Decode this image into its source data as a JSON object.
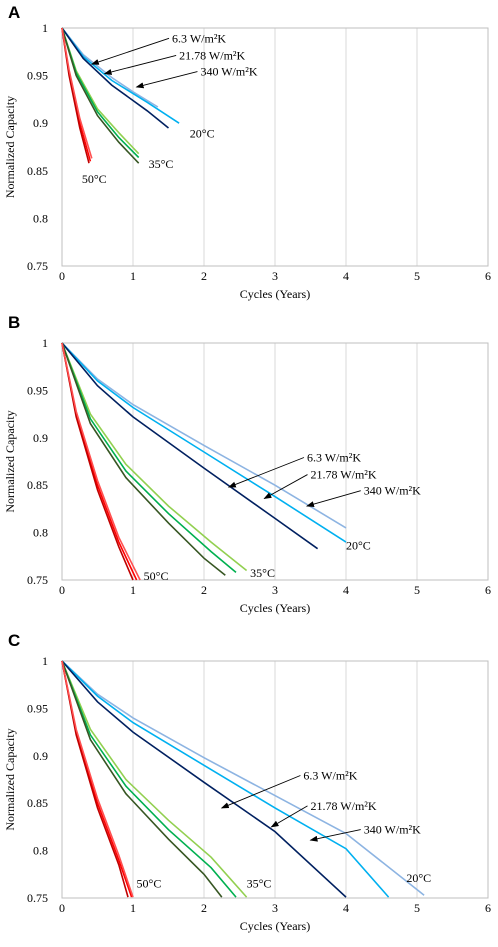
{
  "chart_data": [
    {
      "panel": "A",
      "type": "line",
      "xlabel": "Cycles (Years)",
      "ylabel": "Normalized Capacity",
      "xlim": [
        0,
        6
      ],
      "ylim": [
        0.75,
        1
      ],
      "xticks": [
        "0",
        "1",
        "2",
        "3",
        "4",
        "5",
        "6"
      ],
      "yticks": [
        "0.75",
        "0.8",
        "0.85",
        "0.9",
        "0.95",
        "1"
      ],
      "grid": "vertical",
      "series": [
        {
          "color": "#8db4e2",
          "x": [
            0,
            0.3,
            0.7,
            1.0,
            1.35
          ],
          "y": [
            1,
            0.972,
            0.948,
            0.933,
            0.917
          ]
        },
        {
          "color": "#00b0f0",
          "x": [
            0,
            0.3,
            0.7,
            1.2,
            1.65
          ],
          "y": [
            1,
            0.97,
            0.945,
            0.922,
            0.9
          ]
        },
        {
          "color": "#002060",
          "x": [
            0,
            0.3,
            0.7,
            1.2,
            1.5
          ],
          "y": [
            1,
            0.968,
            0.94,
            0.913,
            0.895
          ]
        },
        {
          "color": "#92d050",
          "x": [
            0,
            0.2,
            0.5,
            0.8,
            1.08
          ],
          "y": [
            1,
            0.955,
            0.915,
            0.89,
            0.868
          ]
        },
        {
          "color": "#00b050",
          "x": [
            0,
            0.2,
            0.5,
            0.8,
            1.08
          ],
          "y": [
            1,
            0.953,
            0.912,
            0.885,
            0.864
          ]
        },
        {
          "color": "#375623",
          "x": [
            0,
            0.2,
            0.5,
            0.8,
            1.08
          ],
          "y": [
            1,
            0.95,
            0.908,
            0.88,
            0.858
          ]
        },
        {
          "color": "#ff0000",
          "x": [
            0,
            0.1,
            0.25,
            0.4
          ],
          "y": [
            1,
            0.953,
            0.9,
            0.86
          ]
        },
        {
          "color": "#c00000",
          "x": [
            0,
            0.1,
            0.25,
            0.38
          ],
          "y": [
            1,
            0.95,
            0.895,
            0.858
          ]
        },
        {
          "color": "#ff5050",
          "x": [
            0,
            0.1,
            0.25,
            0.42
          ],
          "y": [
            1,
            0.956,
            0.905,
            0.863
          ]
        }
      ],
      "annotations": [
        {
          "text": "6.3 W/m²K",
          "label_x": 1.55,
          "label_y": 0.985,
          "point_x": 0.42,
          "point_y": 0.962
        },
        {
          "text": "21.78 W/m²K",
          "label_x": 1.65,
          "label_y": 0.967,
          "point_x": 0.6,
          "point_y": 0.952
        },
        {
          "text": "340 W/m²K",
          "label_x": 1.95,
          "label_y": 0.95,
          "point_x": 1.05,
          "point_y": 0.938
        },
        {
          "text": "20°C",
          "label_x": 1.8,
          "label_y": 0.885,
          "point_x": null,
          "point_y": null
        },
        {
          "text": "35°C",
          "label_x": 1.22,
          "label_y": 0.853,
          "point_x": null,
          "point_y": null
        },
        {
          "text": "50°C",
          "label_x": 0.28,
          "label_y": 0.837,
          "point_x": null,
          "point_y": null
        }
      ]
    },
    {
      "panel": "B",
      "type": "line",
      "xlabel": "Cycles (Years)",
      "ylabel": "Normalized Capacity",
      "xlim": [
        0,
        6
      ],
      "ylim": [
        0.75,
        1
      ],
      "xticks": [
        "0",
        "1",
        "2",
        "3",
        "4",
        "5",
        "6"
      ],
      "yticks": [
        "0.75",
        "0.8",
        "0.85",
        "0.9",
        "0.95",
        "1"
      ],
      "grid": "vertical",
      "series": [
        {
          "color": "#8db4e2",
          "x": [
            0,
            0.5,
            1.0,
            2.0,
            3.0,
            4.0
          ],
          "y": [
            1,
            0.962,
            0.935,
            0.892,
            0.85,
            0.805
          ]
        },
        {
          "color": "#00b0f0",
          "x": [
            0,
            0.5,
            1.0,
            2.0,
            3.0,
            4.0
          ],
          "y": [
            1,
            0.96,
            0.932,
            0.885,
            0.838,
            0.79
          ]
        },
        {
          "color": "#002060",
          "x": [
            0,
            0.5,
            1.0,
            2.0,
            3.0,
            3.6
          ],
          "y": [
            1,
            0.955,
            0.922,
            0.868,
            0.815,
            0.783
          ]
        },
        {
          "color": "#92d050",
          "x": [
            0,
            0.4,
            0.9,
            1.5,
            2.1,
            2.6
          ],
          "y": [
            1,
            0.925,
            0.872,
            0.828,
            0.79,
            0.76
          ]
        },
        {
          "color": "#00b050",
          "x": [
            0,
            0.4,
            0.9,
            1.5,
            2.1,
            2.45
          ],
          "y": [
            1,
            0.92,
            0.865,
            0.82,
            0.78,
            0.758
          ]
        },
        {
          "color": "#375623",
          "x": [
            0,
            0.4,
            0.9,
            1.5,
            2.0,
            2.3
          ],
          "y": [
            1,
            0.915,
            0.858,
            0.81,
            0.773,
            0.755
          ]
        },
        {
          "color": "#ff0000",
          "x": [
            0,
            0.2,
            0.5,
            0.8,
            1.05
          ],
          "y": [
            1,
            0.925,
            0.85,
            0.79,
            0.75
          ]
        },
        {
          "color": "#c00000",
          "x": [
            0,
            0.2,
            0.5,
            0.8,
            1.0
          ],
          "y": [
            1,
            0.922,
            0.845,
            0.785,
            0.75
          ]
        },
        {
          "color": "#ff5050",
          "x": [
            0,
            0.2,
            0.5,
            0.8,
            1.1
          ],
          "y": [
            1,
            0.928,
            0.855,
            0.795,
            0.75
          ]
        }
      ],
      "annotations": [
        {
          "text": "6.3 W/m²K",
          "label_x": 3.45,
          "label_y": 0.875,
          "point_x": 2.35,
          "point_y": 0.848
        },
        {
          "text": "21.78 W/m²K",
          "label_x": 3.5,
          "label_y": 0.857,
          "point_x": 2.85,
          "point_y": 0.836
        },
        {
          "text": "340 W/m²K",
          "label_x": 4.25,
          "label_y": 0.84,
          "point_x": 3.45,
          "point_y": 0.828
        },
        {
          "text": "20°C",
          "label_x": 4.0,
          "label_y": 0.782,
          "point_x": null,
          "point_y": null
        },
        {
          "text": "35°C",
          "label_x": 2.65,
          "label_y": 0.753,
          "point_x": null,
          "point_y": null
        },
        {
          "text": "50°C",
          "label_x": 1.15,
          "label_y": 0.75,
          "point_x": null,
          "point_y": null
        }
      ]
    },
    {
      "panel": "C",
      "type": "line",
      "xlabel": "Cycles (Years)",
      "ylabel": "Normalized Capacity",
      "xlim": [
        0,
        6
      ],
      "ylim": [
        0.75,
        1
      ],
      "xticks": [
        "0",
        "1",
        "2",
        "3",
        "4",
        "5",
        "6"
      ],
      "yticks": [
        "0.75",
        "0.8",
        "0.85",
        "0.9",
        "0.95",
        "1"
      ],
      "grid": "vertical",
      "series": [
        {
          "color": "#8db4e2",
          "x": [
            0,
            0.5,
            1.0,
            2.0,
            3.0,
            4.0,
            5.1
          ],
          "y": [
            1,
            0.965,
            0.94,
            0.898,
            0.858,
            0.818,
            0.753
          ]
        },
        {
          "color": "#00b0f0",
          "x": [
            0,
            0.5,
            1.0,
            2.0,
            3.0,
            4.0,
            4.6
          ],
          "y": [
            1,
            0.963,
            0.935,
            0.89,
            0.845,
            0.802,
            0.751
          ]
        },
        {
          "color": "#002060",
          "x": [
            0,
            0.5,
            1.0,
            2.0,
            3.0,
            4.0
          ],
          "y": [
            1,
            0.957,
            0.925,
            0.872,
            0.82,
            0.751
          ]
        },
        {
          "color": "#92d050",
          "x": [
            0,
            0.4,
            0.9,
            1.5,
            2.1,
            2.6
          ],
          "y": [
            1,
            0.928,
            0.875,
            0.832,
            0.793,
            0.751
          ]
        },
        {
          "color": "#00b050",
          "x": [
            0,
            0.4,
            0.9,
            1.5,
            2.1,
            2.45
          ],
          "y": [
            1,
            0.922,
            0.868,
            0.822,
            0.782,
            0.751
          ]
        },
        {
          "color": "#375623",
          "x": [
            0,
            0.4,
            0.9,
            1.5,
            2.0,
            2.25
          ],
          "y": [
            1,
            0.917,
            0.86,
            0.812,
            0.775,
            0.751
          ]
        },
        {
          "color": "#ff0000",
          "x": [
            0,
            0.2,
            0.5,
            0.8,
            0.98
          ],
          "y": [
            1,
            0.925,
            0.85,
            0.79,
            0.751
          ]
        },
        {
          "color": "#c00000",
          "x": [
            0,
            0.2,
            0.5,
            0.8,
            0.93
          ],
          "y": [
            1,
            0.922,
            0.845,
            0.785,
            0.751
          ]
        },
        {
          "color": "#ff5050",
          "x": [
            0,
            0.2,
            0.5,
            0.8,
            1.0
          ],
          "y": [
            1,
            0.928,
            0.855,
            0.795,
            0.751
          ]
        }
      ],
      "annotations": [
        {
          "text": "6.3 W/m²K",
          "label_x": 3.4,
          "label_y": 0.875,
          "point_x": 2.25,
          "point_y": 0.845
        },
        {
          "text": "21.78 W/m²K",
          "label_x": 3.5,
          "label_y": 0.843,
          "point_x": 2.95,
          "point_y": 0.825
        },
        {
          "text": "340 W/m²K",
          "label_x": 4.25,
          "label_y": 0.818,
          "point_x": 3.5,
          "point_y": 0.811
        },
        {
          "text": "20°C",
          "label_x": 4.85,
          "label_y": 0.767,
          "point_x": null,
          "point_y": null
        },
        {
          "text": "35°C",
          "label_x": 2.6,
          "label_y": 0.761,
          "point_x": null,
          "point_y": null
        },
        {
          "text": "50°C",
          "label_x": 1.05,
          "label_y": 0.761,
          "point_x": null,
          "point_y": null
        }
      ]
    }
  ]
}
